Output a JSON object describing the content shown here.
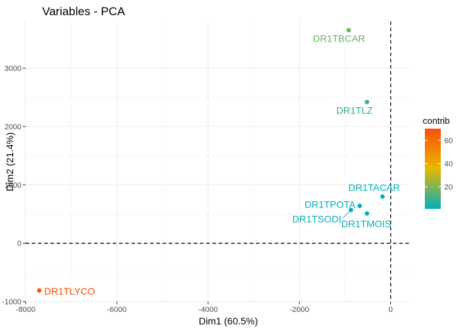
{
  "chart_data": {
    "type": "scatter",
    "title": "Variables - PCA",
    "xlabel": "Dim1 (60.5%)",
    "ylabel": "Dim2 (21.4%)",
    "xlim": [
      -8000,
      400
    ],
    "ylim": [
      -1000,
      3800
    ],
    "xticks": [
      -8000,
      -6000,
      -4000,
      -2000,
      0
    ],
    "yticks": [
      -1000,
      0,
      1000,
      2000,
      3000
    ],
    "xtick_labels": [
      "-8000",
      "-6000",
      "-4000",
      "-2000",
      "0"
    ],
    "ytick_labels": [
      "-1000",
      "0",
      "1000",
      "2000",
      "3000"
    ],
    "grid": true,
    "reference_lines": {
      "x": 0,
      "y": 0,
      "style": "dashed"
    },
    "points": [
      {
        "label": "DR1TBCAR",
        "x": -920,
        "y": 3650,
        "contrib": 17
      },
      {
        "label": "DR1TLZ",
        "x": -520,
        "y": 2420,
        "contrib": 8
      },
      {
        "label": "DR1TACAR",
        "x": -180,
        "y": 800,
        "contrib": 1
      },
      {
        "label": "DR1TPOTA",
        "x": -680,
        "y": 640,
        "contrib": 1
      },
      {
        "label": "DR1TSODI",
        "x": -870,
        "y": 570,
        "contrib": 1
      },
      {
        "label": "DR1TMOIS",
        "x": -520,
        "y": 510,
        "contrib": 1
      },
      {
        "label": "DR1TLYCO",
        "x": -7700,
        "y": -810,
        "contrib": 70
      }
    ],
    "legend": {
      "title": "contrib",
      "placement": "right",
      "ticks": [
        20,
        40,
        60
      ],
      "tick_labels": [
        "20",
        "40",
        "60"
      ],
      "range": [
        1,
        70
      ],
      "gradient_colors": [
        "#00AFBB",
        "#E7B800",
        "#FC4E07"
      ]
    }
  }
}
